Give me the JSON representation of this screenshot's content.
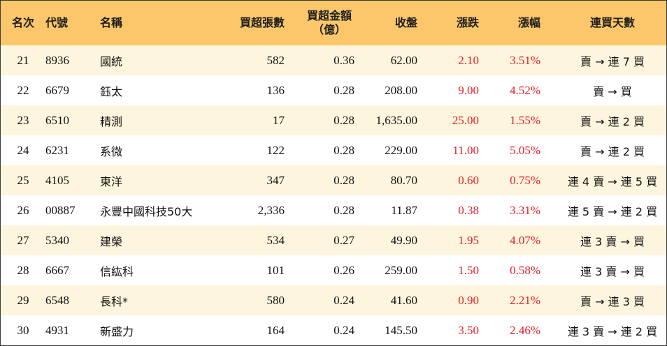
{
  "headers": {
    "rank": "名次",
    "code": "代號",
    "name": "名稱",
    "volume": "買超張數",
    "amount_line1": "買超金額",
    "amount_line2": "（億）",
    "close": "收盤",
    "change": "漲跌",
    "pct": "漲幅",
    "streak": "連買天數"
  },
  "colors": {
    "header_bg": "#fbc76a",
    "stripe_bg": "#fdf5dd",
    "up_red": "#e8202a"
  },
  "rows": [
    {
      "rank": "21",
      "code": "8936",
      "name": "國統",
      "volume": "582",
      "amount": "0.36",
      "close": "62.00",
      "change": "2.10",
      "pct": "3.51%",
      "streak": "賣 → 連 7 買"
    },
    {
      "rank": "22",
      "code": "6679",
      "name": "鈺太",
      "volume": "136",
      "amount": "0.28",
      "close": "208.00",
      "change": "9.00",
      "pct": "4.52%",
      "streak": "賣 → 買"
    },
    {
      "rank": "23",
      "code": "6510",
      "name": "精測",
      "volume": "17",
      "amount": "0.28",
      "close": "1,635.00",
      "change": "25.00",
      "pct": "1.55%",
      "streak": "賣 → 連 2 買"
    },
    {
      "rank": "24",
      "code": "6231",
      "name": "系微",
      "volume": "122",
      "amount": "0.28",
      "close": "229.00",
      "change": "11.00",
      "pct": "5.05%",
      "streak": "賣 → 連 2 買"
    },
    {
      "rank": "25",
      "code": "4105",
      "name": "東洋",
      "volume": "347",
      "amount": "0.28",
      "close": "80.70",
      "change": "0.60",
      "pct": "0.75%",
      "streak": "連 4 賣 → 連 5 買"
    },
    {
      "rank": "26",
      "code": "00887",
      "name": "永豐中國科技50大",
      "volume": "2,336",
      "amount": "0.28",
      "close": "11.87",
      "change": "0.38",
      "pct": "3.31%",
      "streak": "連 5 賣 → 連 2 買"
    },
    {
      "rank": "27",
      "code": "5340",
      "name": "建榮",
      "volume": "534",
      "amount": "0.27",
      "close": "49.90",
      "change": "1.95",
      "pct": "4.07%",
      "streak": "連 3 賣 → 買"
    },
    {
      "rank": "28",
      "code": "6667",
      "name": "信紘科",
      "volume": "101",
      "amount": "0.26",
      "close": "259.00",
      "change": "1.50",
      "pct": "0.58%",
      "streak": "連 3 賣 → 買"
    },
    {
      "rank": "29",
      "code": "6548",
      "name": "長科*",
      "volume": "580",
      "amount": "0.24",
      "close": "41.60",
      "change": "0.90",
      "pct": "2.21%",
      "streak": "賣 → 連 3 買"
    },
    {
      "rank": "30",
      "code": "4931",
      "name": "新盛力",
      "volume": "164",
      "amount": "0.24",
      "close": "145.50",
      "change": "3.50",
      "pct": "2.46%",
      "streak": "連 3 賣 → 連 2 買"
    }
  ]
}
